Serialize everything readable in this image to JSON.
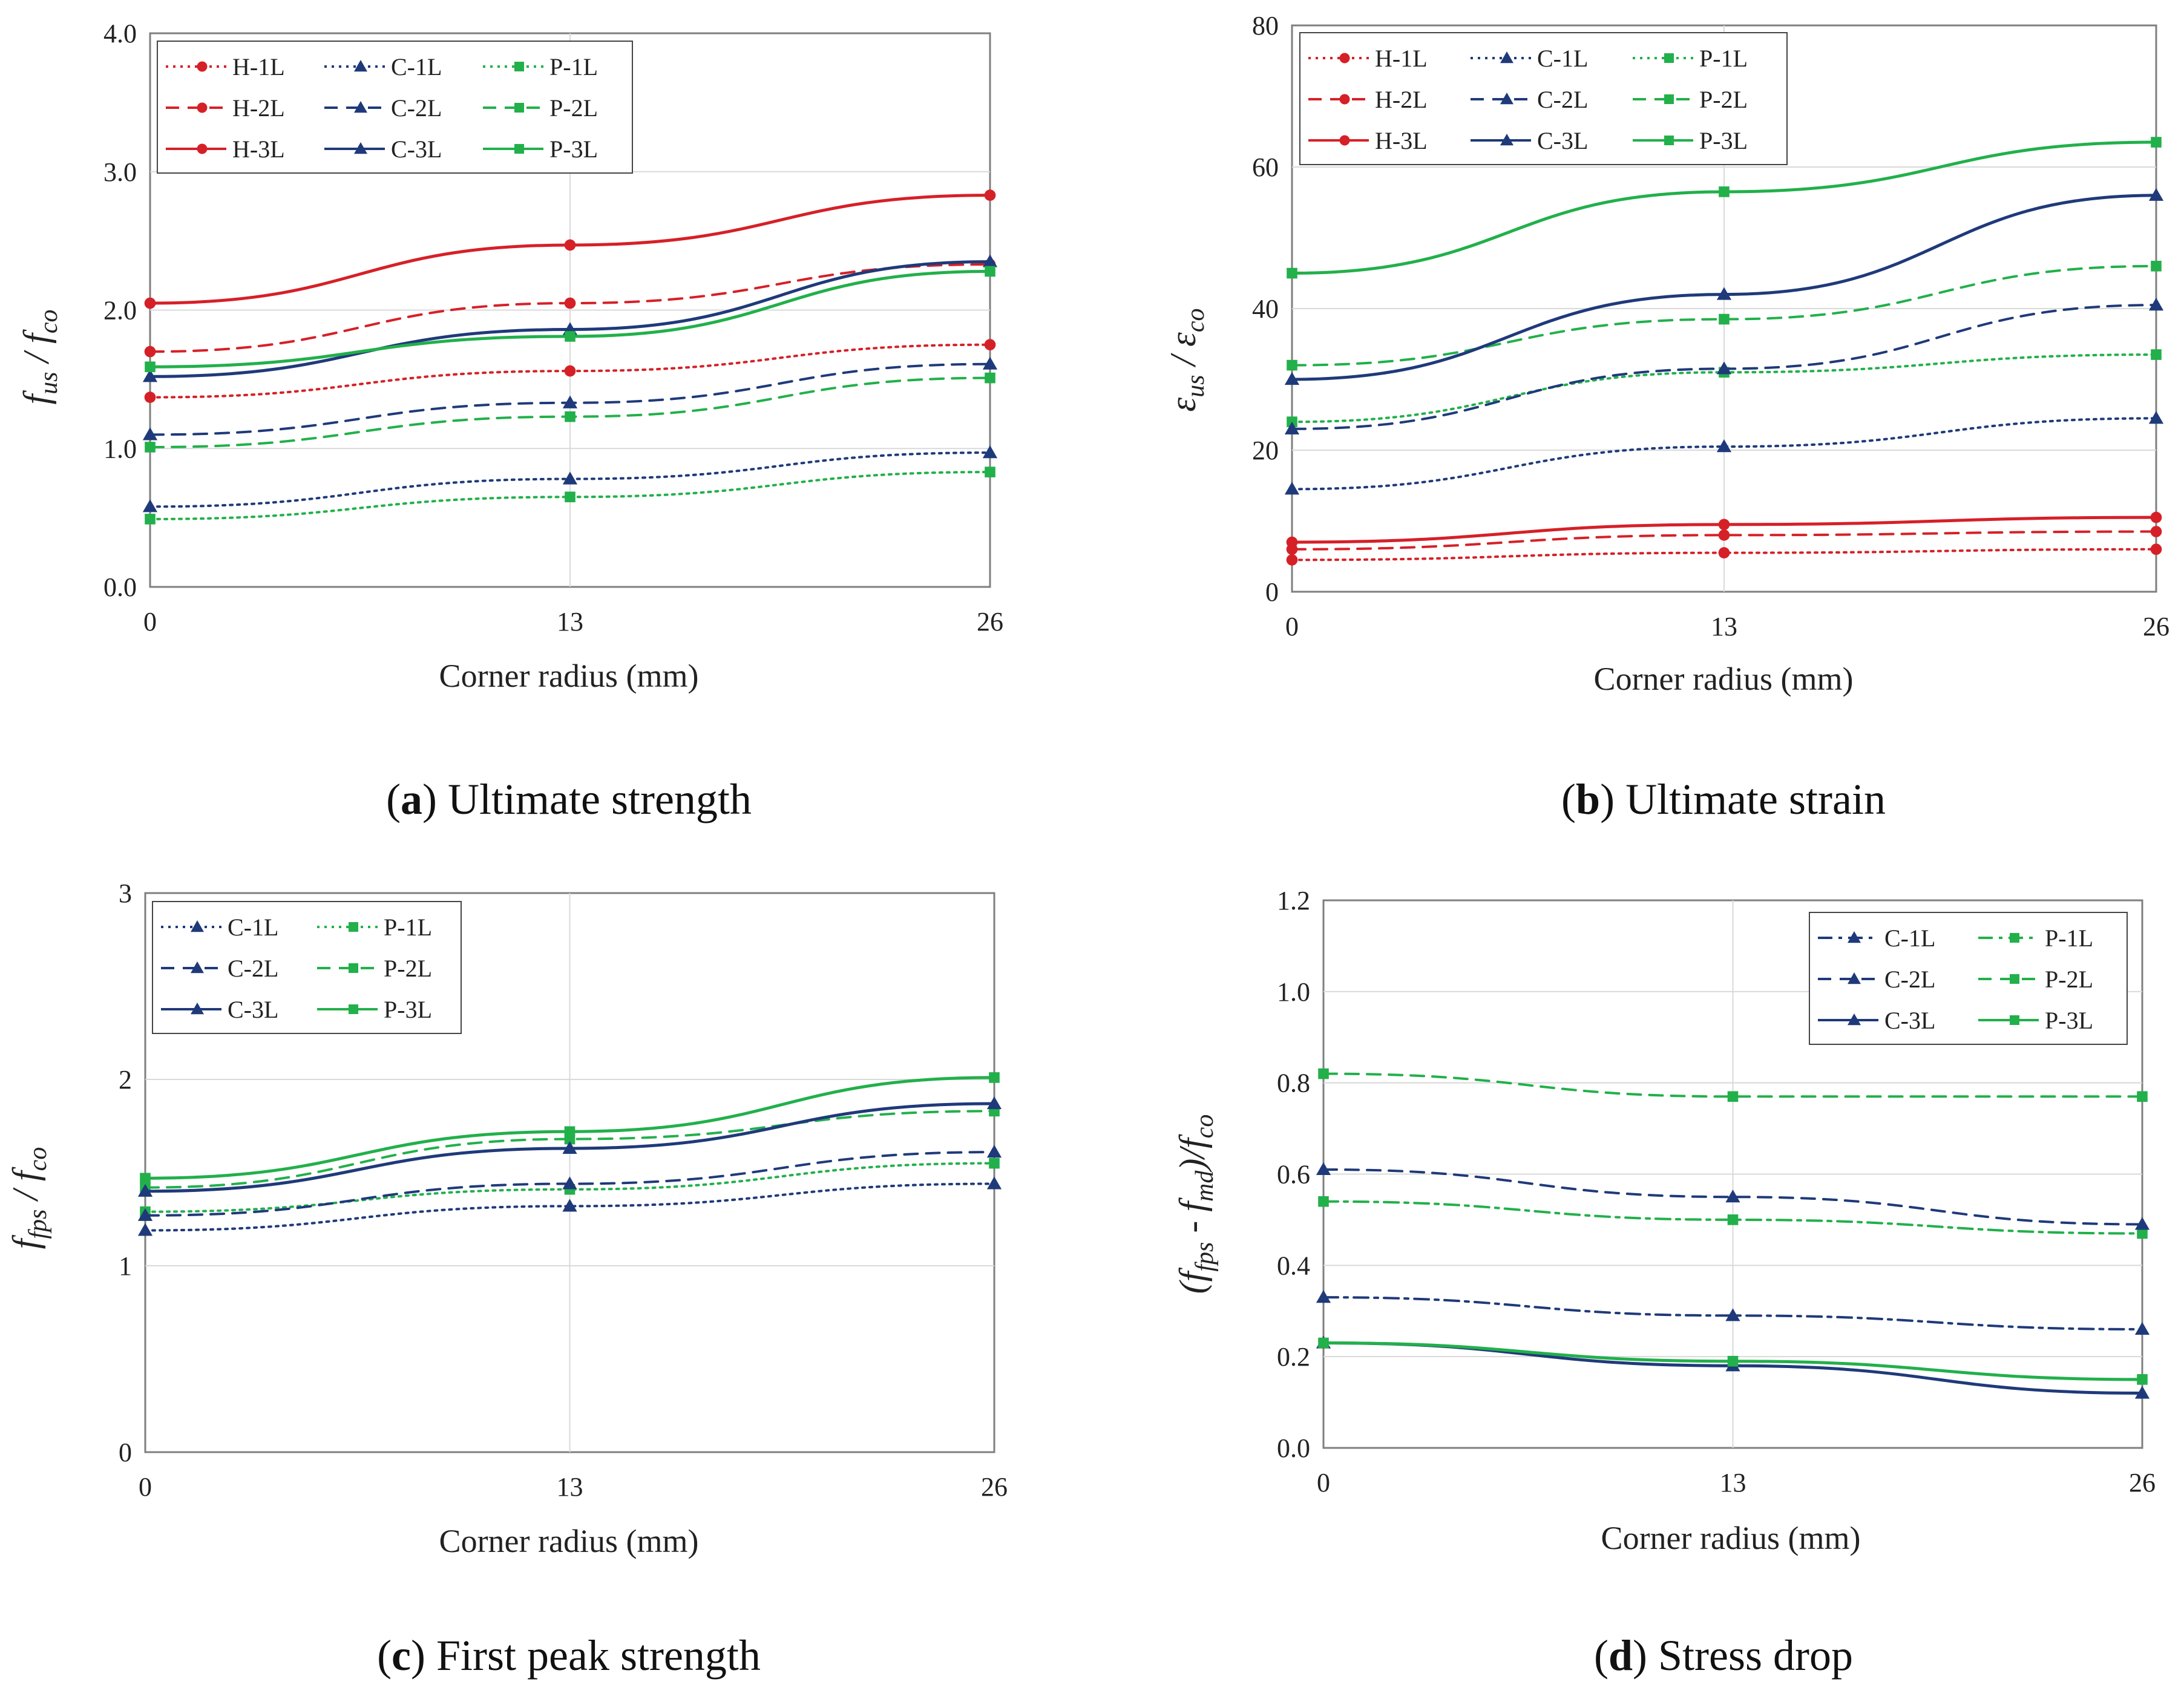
{
  "colors": {
    "H": "#d62027",
    "C": "#1f3a7a",
    "P": "#22b04b",
    "grid": "#d9d9d9",
    "frame": "#7f7f7f"
  },
  "chart_data": [
    {
      "id": "a",
      "type": "line",
      "caption_letter": "a",
      "caption_text": "Ultimate strength",
      "caption_open": "(",
      "caption_close": ")",
      "ylabel": "f_us / f_co",
      "ylabel_main_1": "f",
      "ylabel_sub_1": "us",
      "ylabel_sep": " / ",
      "ylabel_main_2": "f",
      "ylabel_sub_2": "co",
      "xlabel": "Corner radius (mm)",
      "x": [
        0,
        13,
        26
      ],
      "xtick_labels": [
        "0",
        "13",
        "26"
      ],
      "ylim": [
        0,
        4
      ],
      "yticks": [
        0,
        1,
        2,
        3,
        4
      ],
      "ytick_labels": [
        "0.0",
        "1.0",
        "2.0",
        "3.0",
        "4.0"
      ],
      "legend_position": "top-left",
      "series": [
        {
          "name": "H-1L",
          "family": "H",
          "style": "dotted",
          "marker": "circle",
          "values": [
            1.37,
            1.56,
            1.75
          ]
        },
        {
          "name": "C-1L",
          "family": "C",
          "style": "dotted",
          "marker": "triangle",
          "values": [
            0.58,
            0.78,
            0.97
          ]
        },
        {
          "name": "P-1L",
          "family": "P",
          "style": "dotted",
          "marker": "square",
          "values": [
            0.49,
            0.65,
            0.83
          ]
        },
        {
          "name": "H-2L",
          "family": "H",
          "style": "dashed",
          "marker": "circle",
          "values": [
            1.7,
            2.05,
            2.33
          ]
        },
        {
          "name": "C-2L",
          "family": "C",
          "style": "dashed",
          "marker": "triangle",
          "values": [
            1.1,
            1.33,
            1.61
          ]
        },
        {
          "name": "P-2L",
          "family": "P",
          "style": "dashed",
          "marker": "square",
          "values": [
            1.01,
            1.23,
            1.51
          ]
        },
        {
          "name": "H-3L",
          "family": "H",
          "style": "solid",
          "marker": "circle",
          "values": [
            2.05,
            2.47,
            2.83
          ]
        },
        {
          "name": "C-3L",
          "family": "C",
          "style": "solid",
          "marker": "triangle",
          "values": [
            1.52,
            1.86,
            2.35
          ]
        },
        {
          "name": "P-3L",
          "family": "P",
          "style": "solid",
          "marker": "square",
          "values": [
            1.59,
            1.81,
            2.28
          ]
        }
      ]
    },
    {
      "id": "b",
      "type": "line",
      "caption_letter": "b",
      "caption_text": "Ultimate strain",
      "caption_open": "(",
      "caption_close": ")",
      "ylabel": "ε_us / ε_co",
      "ylabel_main_1": "ε",
      "ylabel_sub_1": "us",
      "ylabel_sep": " / ",
      "ylabel_main_2": "ε",
      "ylabel_sub_2": "co",
      "xlabel": "Corner radius (mm)",
      "x": [
        0,
        13,
        26
      ],
      "xtick_labels": [
        "0",
        "13",
        "26"
      ],
      "ylim": [
        0,
        80
      ],
      "yticks": [
        0,
        20,
        40,
        60,
        80
      ],
      "ytick_labels": [
        "0",
        "20",
        "40",
        "60",
        "80"
      ],
      "legend_position": "top-left",
      "series": [
        {
          "name": "H-1L",
          "family": "H",
          "style": "dotted",
          "marker": "circle",
          "values": [
            4.5,
            5.5,
            6.0
          ]
        },
        {
          "name": "C-1L",
          "family": "C",
          "style": "dotted",
          "marker": "triangle",
          "values": [
            14.5,
            20.5,
            24.5
          ]
        },
        {
          "name": "P-1L",
          "family": "P",
          "style": "dotted",
          "marker": "square",
          "values": [
            24.0,
            31.0,
            33.5
          ]
        },
        {
          "name": "H-2L",
          "family": "H",
          "style": "dashed",
          "marker": "circle",
          "values": [
            6.0,
            8.0,
            8.5
          ]
        },
        {
          "name": "C-2L",
          "family": "C",
          "style": "dashed",
          "marker": "triangle",
          "values": [
            23.0,
            31.5,
            40.5
          ]
        },
        {
          "name": "P-2L",
          "family": "P",
          "style": "dashed",
          "marker": "square",
          "values": [
            32.0,
            38.5,
            46.0
          ]
        },
        {
          "name": "H-3L",
          "family": "H",
          "style": "solid",
          "marker": "circle",
          "values": [
            7.0,
            9.5,
            10.5
          ]
        },
        {
          "name": "C-3L",
          "family": "C",
          "style": "solid",
          "marker": "triangle",
          "values": [
            30.0,
            42.0,
            56.0
          ]
        },
        {
          "name": "P-3L",
          "family": "P",
          "style": "solid",
          "marker": "square",
          "values": [
            45.0,
            56.5,
            63.5
          ]
        }
      ]
    },
    {
      "id": "c",
      "type": "line",
      "caption_letter": "c",
      "caption_text": "First peak strength",
      "caption_open": "(",
      "caption_close": ")",
      "ylabel": "f_fps / f_co",
      "ylabel_main_1": "f",
      "ylabel_sub_1": "fps",
      "ylabel_sep": " / ",
      "ylabel_main_2": "f",
      "ylabel_sub_2": "co",
      "xlabel": "Corner radius (mm)",
      "x": [
        0,
        13,
        26
      ],
      "xtick_labels": [
        "0",
        "13",
        "26"
      ],
      "ylim": [
        0,
        3
      ],
      "yticks": [
        0,
        1,
        2,
        3
      ],
      "ytick_labels": [
        "0",
        "1",
        "2",
        "3"
      ],
      "legend_position": "top-left",
      "series": [
        {
          "name": "C-1L",
          "family": "C",
          "style": "dotted",
          "marker": "triangle",
          "values": [
            1.19,
            1.32,
            1.44
          ]
        },
        {
          "name": "P-1L",
          "family": "P",
          "style": "dotted",
          "marker": "square",
          "values": [
            1.29,
            1.41,
            1.55
          ]
        },
        {
          "name": "C-2L",
          "family": "C",
          "style": "dashed",
          "marker": "triangle",
          "values": [
            1.27,
            1.44,
            1.61
          ]
        },
        {
          "name": "P-2L",
          "family": "P",
          "style": "dashed",
          "marker": "square",
          "values": [
            1.42,
            1.68,
            1.83
          ]
        },
        {
          "name": "C-3L",
          "family": "C",
          "style": "solid",
          "marker": "triangle",
          "values": [
            1.4,
            1.63,
            1.87
          ]
        },
        {
          "name": "P-3L",
          "family": "P",
          "style": "solid",
          "marker": "square",
          "values": [
            1.47,
            1.72,
            2.01
          ]
        }
      ]
    },
    {
      "id": "d",
      "type": "line",
      "caption_letter": "d",
      "caption_text": "Stress drop",
      "caption_open": "(",
      "caption_close": ")",
      "ylabel": "(f_fps - f_md)/f_co",
      "ylabel_main_1": "(f",
      "ylabel_sub_1": "fps",
      "ylabel_mid": " - f",
      "ylabel_sub_mid": "md",
      "ylabel_sep": ")/",
      "ylabel_main_2": "f",
      "ylabel_sub_2": "co",
      "xlabel": "Corner radius (mm)",
      "x": [
        0,
        13,
        26
      ],
      "xtick_labels": [
        "0",
        "13",
        "26"
      ],
      "ylim": [
        0,
        1.2
      ],
      "yticks": [
        0,
        0.2,
        0.4,
        0.6,
        0.8,
        1.0,
        1.2
      ],
      "ytick_labels": [
        "0.0",
        "0.2",
        "0.4",
        "0.6",
        "0.8",
        "1.0",
        "1.2"
      ],
      "legend_position": "top-right",
      "series": [
        {
          "name": "C-1L",
          "family": "C",
          "style": "dashdot",
          "marker": "triangle",
          "values": [
            0.33,
            0.29,
            0.26
          ]
        },
        {
          "name": "P-1L",
          "family": "P",
          "style": "dashdot",
          "marker": "square",
          "values": [
            0.54,
            0.5,
            0.47
          ]
        },
        {
          "name": "C-2L",
          "family": "C",
          "style": "dashed",
          "marker": "triangle",
          "values": [
            0.61,
            0.55,
            0.49
          ]
        },
        {
          "name": "P-2L",
          "family": "P",
          "style": "dashed",
          "marker": "square",
          "values": [
            0.82,
            0.77,
            0.77
          ]
        },
        {
          "name": "C-3L",
          "family": "C",
          "style": "solid",
          "marker": "triangle",
          "values": [
            0.23,
            0.18,
            0.12
          ]
        },
        {
          "name": "P-3L",
          "family": "P",
          "style": "solid",
          "marker": "square",
          "values": [
            0.23,
            0.19,
            0.15
          ]
        }
      ]
    }
  ]
}
